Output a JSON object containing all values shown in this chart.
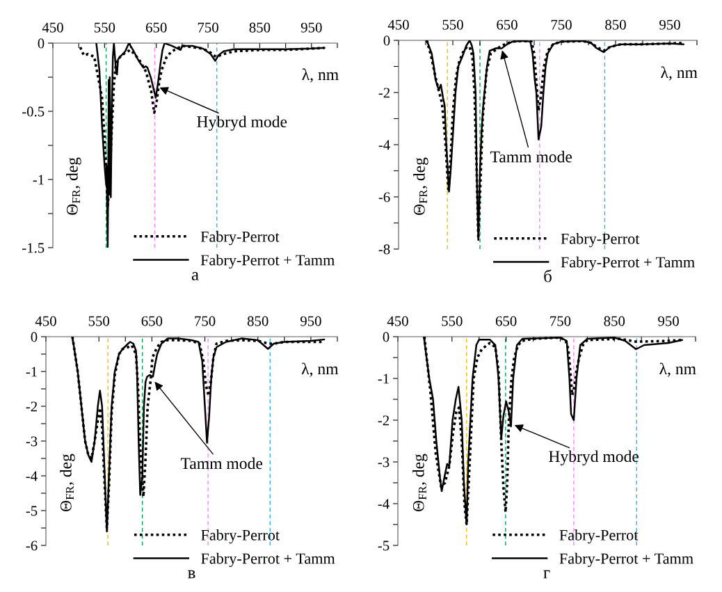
{
  "chart_data": [
    {
      "type": "line",
      "xlabel": "λ, nm",
      "ylabel": "Θ$_{FR}$, deg",
      "xlim": [
        450,
        1000
      ],
      "ylim": [
        -1.5,
        0
      ],
      "xticks": [
        450,
        {
          "value": 500,
          "label": null
        },
        550,
        {
          "value": 600,
          "label": null
        },
        650,
        {
          "value": 700,
          "label": null
        },
        750,
        {
          "value": 800,
          "label": null
        },
        850,
        {
          "value": 900,
          "label": null
        },
        950,
        {
          "value": 1000,
          "label": null
        }
      ],
      "yticks": [
        0,
        {
          "value": -0.25,
          "label": null
        },
        -0.5,
        {
          "value": -0.75,
          "label": null
        },
        -1,
        {
          "value": -1.25,
          "label": null
        },
        -1.5
      ],
      "grid": false,
      "legend": "bottom right",
      "marker": "none",
      "series": [
        {
          "name": "Fabry-Perrot",
          "color": "#000000",
          "line_style": "dotted",
          "x": [
            503,
            510,
            518,
            530,
            545,
            550,
            553,
            556,
            560,
            563,
            568,
            572,
            580,
            590,
            600,
            610,
            620,
            630,
            640,
            646,
            650,
            655,
            660,
            670,
            680,
            700,
            720,
            740,
            755,
            765,
            780,
            800,
            850,
            900,
            950,
            975
          ],
          "values": [
            -0.03,
            -0.09,
            -0.08,
            -0.1,
            -0.4,
            -0.7,
            -0.9,
            -1.2,
            -1.0,
            -0.7,
            -0.3,
            -0.15,
            -0.1,
            -0.07,
            -0.05,
            -0.09,
            -0.14,
            -0.21,
            -0.35,
            -0.51,
            -0.45,
            -0.3,
            -0.2,
            -0.1,
            -0.06,
            -0.02,
            -0.03,
            -0.04,
            -0.07,
            -0.1,
            -0.08,
            -0.06,
            -0.05,
            -0.05,
            -0.04,
            -0.035
          ]
        },
        {
          "name": "Fabry-Perrot + Tamm",
          "color": "#000000",
          "line_style": "solid",
          "x": [
            534,
            540,
            545,
            550,
            553,
            554,
            555,
            556,
            557,
            558,
            559,
            560,
            562,
            564,
            566,
            568,
            570,
            572,
            574,
            576,
            580,
            590,
            597,
            605,
            616,
            625,
            630,
            633,
            640,
            645,
            649,
            653,
            658,
            662,
            666,
            680,
            697,
            700,
            720,
            740,
            755,
            764,
            770,
            780,
            800,
            850,
            900,
            950,
            975
          ],
          "values": [
            0,
            -0.2,
            -0.6,
            -0.9,
            -1.04,
            -0.9,
            -1.2,
            -1.5,
            -1.0,
            -0.27,
            -1.1,
            -0.25,
            -1.13,
            -0.5,
            -0.1,
            0,
            -0.1,
            -0.2,
            -0.23,
            -0.12,
            -0.1,
            -0.06,
            0,
            -0.05,
            -0.13,
            -0.18,
            -0.17,
            -0.18,
            -0.26,
            -0.34,
            -0.4,
            -0.3,
            -0.15,
            -0.05,
            0,
            -0.02,
            -0.05,
            -0.02,
            -0.02,
            -0.04,
            -0.08,
            -0.13,
            -0.09,
            -0.06,
            -0.045,
            -0.045,
            -0.045,
            -0.04,
            -0.035
          ]
        }
      ],
      "ref_lines": [
        {
          "axis": "x",
          "value": 553,
          "color": "#00a050",
          "line_style": "dashed"
        },
        {
          "axis": "x",
          "value": 647,
          "color": "#ff80ff",
          "line_style": "dashed"
        },
        {
          "axis": "x",
          "value": 767,
          "color": "#30b0f0",
          "line_style": "dashed"
        }
      ],
      "annotations": [
        {
          "text": "Hybryd mode",
          "x": 653,
          "y": -0.32
        },
        "а"
      ]
    },
    {
      "type": "line",
      "xlabel": "λ, nm",
      "ylabel": "Θ$_{FR}$, deg",
      "xlim": [
        450,
        1000
      ],
      "ylim": [
        -8,
        0
      ],
      "xticks": [
        450,
        {
          "value": 500,
          "label": null
        },
        550,
        {
          "value": 600,
          "label": null
        },
        650,
        {
          "value": 700,
          "label": null
        },
        750,
        {
          "value": 800,
          "label": null
        },
        850,
        {
          "value": 900,
          "label": null
        },
        950,
        {
          "value": 1000,
          "label": null
        }
      ],
      "yticks": [
        0,
        {
          "value": -1,
          "label": null
        },
        -2,
        {
          "value": -3,
          "label": null
        },
        -4,
        {
          "value": -5,
          "label": null
        },
        -6,
        {
          "value": -7,
          "label": null
        },
        -8
      ],
      "grid": false,
      "legend": "bottom right",
      "marker": "none",
      "series": [
        {
          "name": "Fabry-Perrot",
          "color": "#000000",
          "line_style": "dotted",
          "x": [
            502,
            510,
            518,
            525,
            530,
            536,
            542,
            546,
            550,
            556,
            562,
            570,
            576,
            581,
            586,
            590,
            594,
            597,
            600,
            605,
            612,
            620,
            630,
            640,
            650,
            660,
            680,
            695,
            700,
            704,
            708,
            712,
            718,
            725,
            735,
            750,
            790,
            805,
            815,
            828,
            840,
            860,
            900,
            950,
            975
          ],
          "values": [
            0,
            -0.6,
            -1.4,
            -2.0,
            -2.4,
            -3.8,
            -5.8,
            -4.5,
            -2.8,
            -1.4,
            -0.8,
            -0.4,
            -0.25,
            -0.25,
            -0.6,
            -2.0,
            -5.0,
            -7.6,
            -6.0,
            -3.0,
            -1.2,
            -0.5,
            -0.35,
            -0.2,
            -0.12,
            -0.05,
            -0.02,
            -0.05,
            -0.5,
            -1.6,
            -2.7,
            -2.2,
            -1.0,
            -0.4,
            -0.15,
            -0.05,
            -0.03,
            -0.1,
            -0.25,
            -0.4,
            -0.25,
            -0.15,
            -0.15,
            -0.12,
            -0.1
          ]
        },
        {
          "name": "Fabry-Perrot + Tamm",
          "color": "#000000",
          "line_style": "solid",
          "x": [
            502,
            511,
            515,
            518,
            524,
            528,
            532,
            535,
            538,
            543,
            546,
            549,
            555,
            560,
            568,
            575,
            581,
            585,
            588,
            592,
            594,
            597,
            600,
            603,
            606,
            613,
            618,
            630,
            640,
            650,
            660,
            680,
            693,
            697,
            701,
            704,
            708,
            713,
            717,
            721,
            725,
            735,
            750,
            790,
            805,
            815,
            828,
            840,
            860,
            900,
            950,
            975
          ],
          "values": [
            0,
            -0.5,
            -1.0,
            -1.5,
            -1.9,
            -1.7,
            -2.2,
            -2.5,
            -4.0,
            -5.8,
            -5.0,
            -4.0,
            -2.0,
            -1.0,
            -0.6,
            -0.2,
            0,
            -0.2,
            -0.5,
            -2.0,
            -5.0,
            -7.65,
            -5.0,
            -3.5,
            -2.5,
            -1.0,
            -0.4,
            -0.3,
            -0.31,
            -0.15,
            -0.05,
            -0.02,
            -0.05,
            -0.5,
            -1.5,
            -2.0,
            -3.8,
            -3.3,
            -2.0,
            -1.0,
            -0.5,
            -0.15,
            -0.05,
            -0.02,
            -0.1,
            -0.3,
            -0.45,
            -0.25,
            -0.15,
            -0.15,
            -0.12,
            -0.15
          ]
        }
      ],
      "ref_lines": [
        {
          "axis": "x",
          "value": 540,
          "color": "#f5b800",
          "line_style": "dashed"
        },
        {
          "axis": "x",
          "value": 600,
          "color": "#00a050",
          "line_style": "dashed"
        },
        {
          "axis": "x",
          "value": 710,
          "color": "#ff80ff",
          "line_style": "dashed"
        },
        {
          "axis": "x",
          "value": 830,
          "color": "#30b0f0",
          "line_style": "dashed"
        }
      ],
      "annotations": [
        {
          "text": "Tamm mode",
          "x": 640,
          "y": -0.31
        },
        "б"
      ]
    },
    {
      "type": "line",
      "xlabel": "λ, nm",
      "ylabel": "Θ$_{FR}$, deg",
      "xlim": [
        450,
        1000
      ],
      "ylim": [
        -6,
        0
      ],
      "xticks": [
        450,
        {
          "value": 500,
          "label": null
        },
        550,
        {
          "value": 600,
          "label": null
        },
        650,
        {
          "value": 700,
          "label": null
        },
        750,
        {
          "value": 800,
          "label": null
        },
        850,
        {
          "value": 900,
          "label": null
        },
        950,
        {
          "value": 1000,
          "label": null
        }
      ],
      "yticks": [
        0,
        {
          "value": -0.5,
          "label": null
        },
        -1,
        {
          "value": -1.5,
          "label": null
        },
        -2,
        {
          "value": -2.5,
          "label": null
        },
        -3,
        {
          "value": -3.5,
          "label": null
        },
        -4,
        {
          "value": -4.5,
          "label": null
        },
        -5,
        {
          "value": -5.5,
          "label": null
        },
        -6
      ],
      "grid": false,
      "legend": "bottom right",
      "marker": "none",
      "series": [
        {
          "name": "Fabry-Perrot",
          "color": "#000000",
          "line_style": "dotted",
          "x": [
            500,
            510,
            517,
            524,
            530,
            536,
            542,
            548,
            552,
            556,
            561,
            565,
            569,
            574,
            580,
            588,
            595,
            605,
            612,
            620,
            624,
            628,
            634,
            638,
            642,
            648,
            651,
            660,
            668,
            680,
            700,
            725,
            740,
            747,
            752,
            757,
            762,
            766,
            772,
            790,
            820,
            850,
            870,
            880,
            900,
            950,
            975
          ],
          "values": [
            0,
            -1.0,
            -2.0,
            -3.0,
            -3.4,
            -3.5,
            -3.0,
            -2.4,
            -2.05,
            -2.6,
            -4.3,
            -5.5,
            -4.3,
            -2.2,
            -1.1,
            -0.5,
            -0.35,
            -0.3,
            -0.25,
            -0.5,
            -1.5,
            -3.2,
            -4.6,
            -3.5,
            -2.0,
            -1.2,
            -0.6,
            -0.3,
            -0.15,
            -0.1,
            -0.1,
            -0.12,
            -0.2,
            -0.7,
            -1.4,
            -1.7,
            -1.2,
            -0.6,
            -0.2,
            -0.12,
            -0.1,
            -0.12,
            -0.2,
            -0.2,
            -0.15,
            -0.15,
            -0.15
          ]
        },
        {
          "name": "Fabry-Perrot + Tamm",
          "color": "#000000",
          "line_style": "solid",
          "x": [
            500,
            510,
            517,
            524,
            530,
            536,
            542,
            548,
            552,
            556,
            561,
            565,
            569,
            574,
            580,
            588,
            595,
            605,
            609,
            615,
            620,
            622,
            625,
            628,
            632,
            635,
            638,
            641,
            646,
            652,
            656,
            660,
            668,
            680,
            700,
            725,
            738,
            745,
            750,
            754,
            758,
            762,
            766,
            772,
            790,
            820,
            850,
            869,
            880,
            900,
            950,
            975
          ],
          "values": [
            0,
            -1.0,
            -2.0,
            -3.0,
            -3.4,
            -3.6,
            -3.0,
            -2.0,
            -1.55,
            -2.0,
            -4.0,
            -5.6,
            -4.0,
            -2.0,
            -1.0,
            -0.5,
            -0.35,
            -0.2,
            -0.15,
            -0.2,
            -0.4,
            -1.0,
            -3.0,
            -4.55,
            -4.0,
            -2.0,
            -1.3,
            -1.15,
            -1.1,
            -1.15,
            -0.8,
            -0.5,
            -0.2,
            -0.05,
            -0.05,
            -0.1,
            -0.15,
            -0.7,
            -2.0,
            -3.05,
            -2.3,
            -1.2,
            -0.6,
            -0.3,
            -0.15,
            -0.05,
            -0.1,
            -0.35,
            -0.2,
            -0.15,
            -0.12,
            -0.08
          ]
        }
      ],
      "ref_lines": [
        {
          "axis": "x",
          "value": 567,
          "color": "#f5b800",
          "line_style": "dashed"
        },
        {
          "axis": "x",
          "value": 632,
          "color": "#00a050",
          "line_style": "dashed"
        },
        {
          "axis": "x",
          "value": 756,
          "color": "#ff80ff",
          "line_style": "dashed"
        },
        {
          "axis": "x",
          "value": 873,
          "color": "#30b0f0",
          "line_style": "dashed"
        }
      ],
      "annotations": [
        {
          "text": "Tamm mode",
          "x": 653,
          "y": -1.25
        },
        "в"
      ]
    },
    {
      "type": "line",
      "xlabel": "λ, nm",
      "ylabel": "Θ$_{FR}$, deg",
      "xlim": [
        450,
        1000
      ],
      "ylim": [
        -5,
        0
      ],
      "xticks": [
        450,
        {
          "value": 500,
          "label": null
        },
        550,
        {
          "value": 600,
          "label": null
        },
        650,
        {
          "value": 700,
          "label": null
        },
        750,
        {
          "value": 800,
          "label": null
        },
        850,
        {
          "value": 900,
          "label": null
        },
        950,
        {
          "value": 1000,
          "label": null
        }
      ],
      "yticks": [
        0,
        {
          "value": -0.5,
          "label": null
        },
        -1,
        {
          "value": -1.5,
          "label": null
        },
        -2,
        {
          "value": -2.5,
          "label": null
        },
        -3,
        {
          "value": -3.5,
          "label": null
        },
        -4,
        {
          "value": -4.5,
          "label": null
        },
        -5
      ],
      "grid": false,
      "legend": "bottom right",
      "marker": "none",
      "series": [
        {
          "name": "Fabry-Perrot",
          "color": "#000000",
          "line_style": "dotted",
          "x": [
            499,
            510,
            520,
            530,
            537,
            545,
            552,
            558,
            563,
            568,
            573,
            577,
            582,
            590,
            597,
            605,
            620,
            630,
            636,
            641,
            645,
            649,
            652,
            655,
            660,
            665,
            672,
            680,
            700,
            750,
            760,
            765,
            769,
            772,
            776,
            780,
            785,
            792,
            800,
            860,
            890,
            950,
            975
          ],
          "values": [
            0,
            -1.3,
            -2.8,
            -3.6,
            -3.5,
            -3.1,
            -2.3,
            -1.8,
            -1.7,
            -2.5,
            -4.0,
            -4.5,
            -3.2,
            -1.0,
            -0.5,
            -0.3,
            -0.15,
            -0.25,
            -0.8,
            -2.5,
            -3.6,
            -4.2,
            -3.5,
            -2.0,
            -1.0,
            -0.5,
            -0.2,
            -0.1,
            -0.05,
            -0.02,
            -0.1,
            -0.3,
            -0.9,
            -1.4,
            -1.2,
            -0.8,
            -0.5,
            -0.2,
            -0.08,
            -0.05,
            -0.12,
            -0.1,
            -0.08
          ]
        },
        {
          "name": "Fabry-Perrot + Tamm",
          "color": "#000000",
          "line_style": "solid",
          "x": [
            498,
            508,
            515,
            521,
            528,
            531,
            537,
            541,
            545,
            551,
            557,
            562,
            568,
            572,
            577,
            580,
            584,
            588,
            595,
            600,
            620,
            630,
            636,
            641,
            645,
            650,
            655,
            659,
            663,
            670,
            680,
            750,
            762,
            767,
            770,
            775,
            780,
            787,
            800,
            850,
            870,
            890,
            905,
            950,
            975
          ],
          "values": [
            0,
            -1.0,
            -1.5,
            -2.5,
            -3.4,
            -3.7,
            -3.3,
            -3.05,
            -3.1,
            -2.0,
            -1.5,
            -1.2,
            -2.0,
            -3.5,
            -4.5,
            -3.0,
            -2.0,
            -1.0,
            -0.2,
            -0.07,
            -0.07,
            -0.2,
            -1.0,
            -2.45,
            -1.9,
            -1.55,
            -1.8,
            -2.15,
            -1.0,
            -0.2,
            -0.05,
            -0.02,
            -0.1,
            -1.0,
            -1.85,
            -2.0,
            -1.0,
            -0.2,
            -0.05,
            -0.02,
            -0.1,
            -0.3,
            -0.2,
            -0.15,
            -0.08
          ]
        }
      ],
      "ref_lines": [
        {
          "axis": "x",
          "value": 577,
          "color": "#f5b800",
          "line_style": "dashed"
        },
        {
          "axis": "x",
          "value": 649,
          "color": "#00a050",
          "line_style": "dashed"
        },
        {
          "axis": "x",
          "value": 775,
          "color": "#ff80ff",
          "line_style": "dashed"
        },
        {
          "axis": "x",
          "value": 891,
          "color": "#30b0f0",
          "line_style": "dashed"
        }
      ],
      "annotations": [
        {
          "text": "Hybryd mode",
          "x": 662,
          "y": -2.1
        },
        "г"
      ]
    }
  ]
}
